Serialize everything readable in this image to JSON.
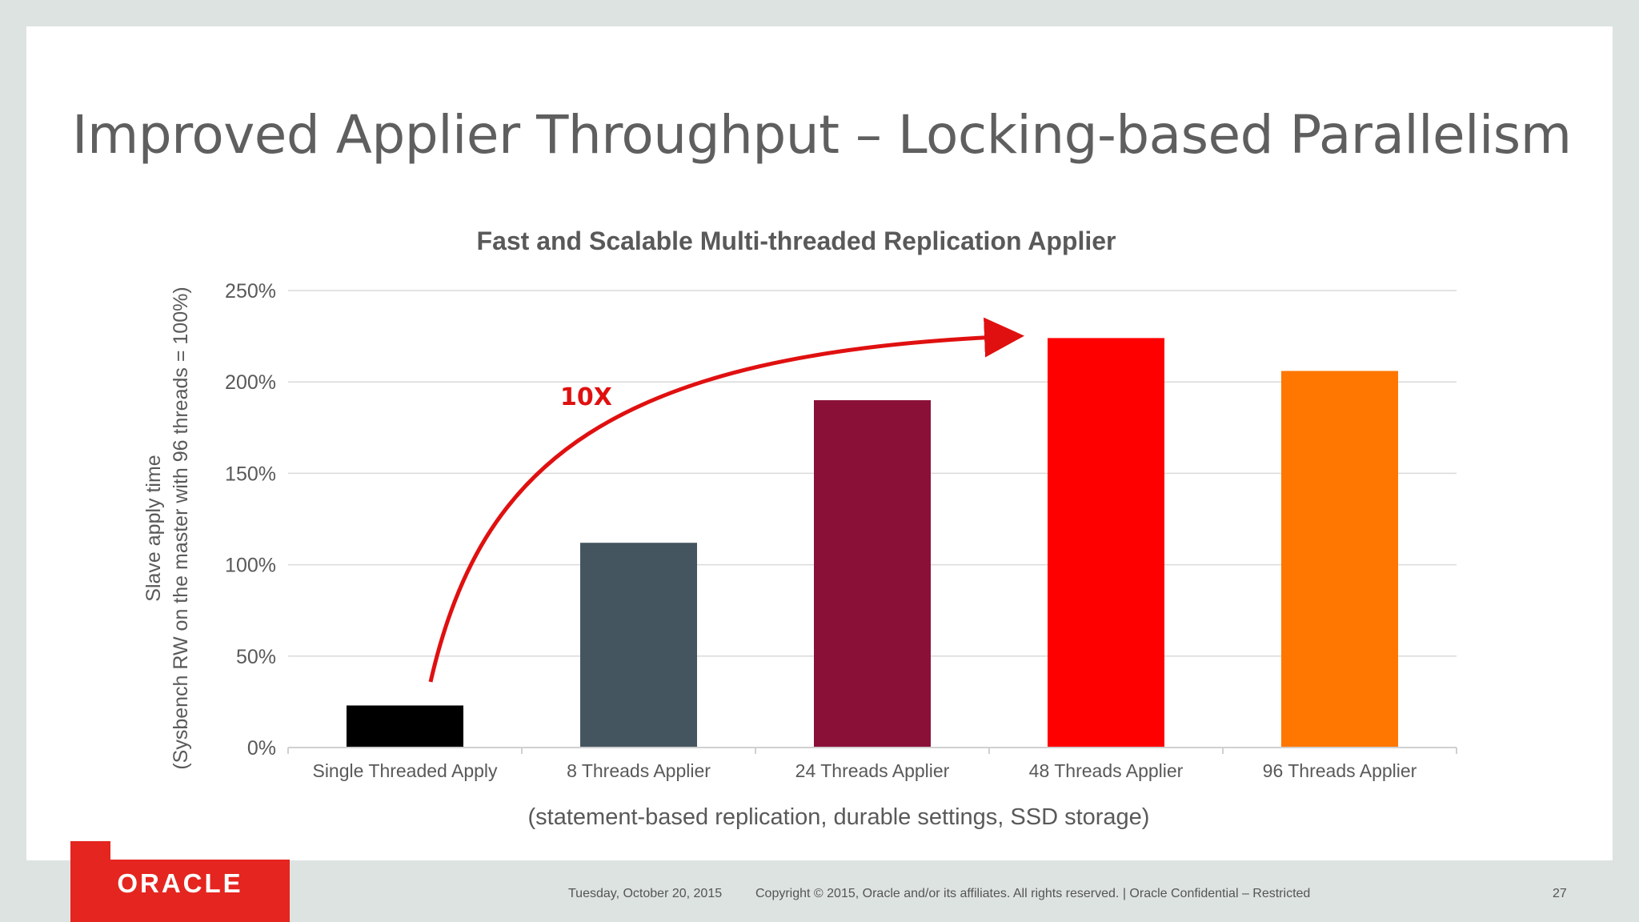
{
  "slide": {
    "title": "Improved Applier Throughput – Locking-based Parallelism",
    "footer": {
      "date": "Tuesday, October 20, 2015",
      "copyright": "Copyright © 2015, Oracle and/or its affiliates. All rights reserved.  |  Oracle Confidential – Restricted",
      "page_number": "27"
    },
    "logo_text": "ORACLE"
  },
  "chart_data": {
    "type": "bar",
    "title": "Fast and Scalable Multi-threaded Replication Applier",
    "ylabel_lines": [
      "Slave apply time",
      "(Sysbench RW on the master with 96 threads = 100%)"
    ],
    "xlabel": "(statement-based replication, durable settings, SSD storage)",
    "categories": [
      "Single Threaded Apply",
      "8 Threads Applier",
      "24 Threads Applier",
      "48 Threads Applier",
      "96 Threads Applier"
    ],
    "values": [
      23,
      112,
      190,
      224,
      206
    ],
    "bar_colors": [
      "#000000",
      "#455560",
      "#8a1038",
      "#ff0000",
      "#ff7700"
    ],
    "yticks": [
      0,
      50,
      100,
      150,
      200,
      250
    ],
    "ytick_labels": [
      "0%",
      "50%",
      "100%",
      "150%",
      "200%",
      "250%"
    ],
    "ylim": [
      0,
      250
    ],
    "grid": true,
    "annotation": {
      "text": "10X",
      "color": "#e01010"
    }
  }
}
